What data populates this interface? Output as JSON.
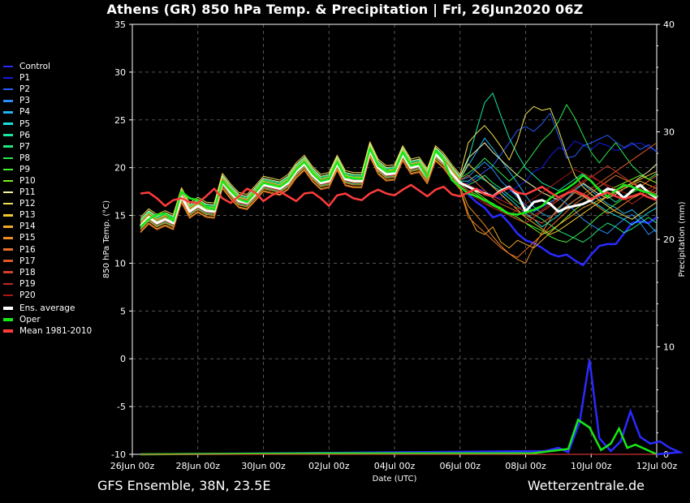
{
  "title": "Athens  (GR)  850 hPa Temp. & Precipitation | Fri, 26Jun2020 06Z",
  "footer": {
    "left": "GFS Ensemble, 38N, 23.5E",
    "right": "Wetterzentrale.de"
  },
  "legend": [
    {
      "label": "Control",
      "color": "#2a2aff"
    },
    {
      "label": "P1",
      "color": "#1818e8"
    },
    {
      "label": "P2",
      "color": "#2a5cff"
    },
    {
      "label": "P3",
      "color": "#2c8cff"
    },
    {
      "label": "P4",
      "color": "#20b4f0"
    },
    {
      "label": "P5",
      "color": "#1ce0e0"
    },
    {
      "label": "P6",
      "color": "#19e6a0"
    },
    {
      "label": "P7",
      "color": "#22e678"
    },
    {
      "label": "P8",
      "color": "#2de650"
    },
    {
      "label": "P9",
      "color": "#44f030"
    },
    {
      "label": "P10",
      "color": "#7cf020"
    },
    {
      "label": "P11",
      "color": "#f2f2a0"
    },
    {
      "label": "P12",
      "color": "#f0e050"
    },
    {
      "label": "P13",
      "color": "#f0c830"
    },
    {
      "label": "P14",
      "color": "#f0a828"
    },
    {
      "label": "P15",
      "color": "#f08c28"
    },
    {
      "label": "P16",
      "color": "#e87028"
    },
    {
      "label": "P17",
      "color": "#e05828"
    },
    {
      "label": "P18",
      "color": "#d04028"
    },
    {
      "label": "P19",
      "color": "#c02828"
    },
    {
      "label": "P20",
      "color": "#a81818"
    },
    {
      "label": "Ens. average",
      "color": "#ffffff"
    },
    {
      "label": "Oper",
      "color": "#18e818"
    },
    {
      "label": "Mean 1981-2010",
      "color": "#ff3c3c"
    }
  ],
  "chart_data": {
    "type": "line",
    "xlabel": "Date (UTC)",
    "ylabel": "850 hPa Temp. (°C)",
    "y2label": "Precipitation (mm)",
    "ylim": [
      -10,
      35
    ],
    "y2lim": [
      0,
      40
    ],
    "yticks": [
      -10,
      -5,
      0,
      5,
      10,
      15,
      20,
      25,
      30,
      35
    ],
    "y2ticks": [
      0,
      10,
      20,
      30,
      40
    ],
    "xlim": [
      0,
      16
    ],
    "xtick_positions": [
      0,
      2,
      4,
      6,
      8,
      10,
      12,
      14,
      16
    ],
    "xtick_labels": [
      "26Jun 00z",
      "28Jun 00z",
      "30Jun 00z",
      "02Jul 00z",
      "04Jul 00z",
      "06Jul 00z",
      "08Jul 00z",
      "10Jul 00z",
      "12Jul 00z"
    ],
    "grid": true,
    "x": [
      0.25,
      0.5,
      0.75,
      1.0,
      1.25,
      1.5,
      1.75,
      2.0,
      2.25,
      2.5,
      2.75,
      3.0,
      3.25,
      3.5,
      3.75,
      4.0,
      4.25,
      4.5,
      4.75,
      5.0,
      5.25,
      5.5,
      5.75,
      6.0,
      6.25,
      6.5,
      6.75,
      7.0,
      7.25,
      7.5,
      7.75,
      8.0,
      8.25,
      8.5,
      8.75,
      9.0,
      9.25,
      9.5,
      9.75,
      10.0,
      10.25,
      10.5,
      10.75,
      11.0,
      11.25,
      11.5,
      11.75,
      12.0,
      12.25,
      12.5,
      12.75,
      13.0,
      13.25,
      13.5,
      13.75,
      14.0,
      14.25,
      14.5,
      14.75,
      15.0,
      15.25,
      15.5,
      15.75,
      16.0
    ],
    "series": [
      {
        "name": "Control",
        "color": "#2a2aff",
        "width": 2.5,
        "offset": 0,
        "tail": [
          17.2,
          16.4,
          15.8,
          14.8,
          15.1,
          14.2,
          13.1,
          12.4,
          12.1,
          11.6,
          11.0,
          10.7,
          10.9,
          10.3,
          9.8,
          10.9,
          11.8,
          12.0,
          12.0,
          13.1,
          14.2,
          14.4,
          14.2,
          14.8,
          15.2,
          15.7,
          15.4
        ],
        "precip": [
          [
            12.6,
            0.3
          ],
          [
            13.0,
            0.6
          ],
          [
            13.3,
            0.2
          ],
          [
            13.65,
            3.0
          ],
          [
            13.95,
            8.8
          ],
          [
            14.25,
            1.5
          ],
          [
            14.6,
            0.3
          ],
          [
            14.9,
            1.2
          ],
          [
            15.2,
            4.0
          ],
          [
            15.5,
            1.6
          ],
          [
            15.8,
            1.0
          ],
          [
            16.1,
            1.2
          ],
          [
            16.4,
            0.6
          ],
          [
            16.7,
            0.2
          ]
        ]
      },
      {
        "name": "P1",
        "color": "#1818e8",
        "offset": 0.1,
        "tail": [
          18.1,
          17.8,
          17.6,
          17.0,
          16.8,
          17.5,
          18.0,
          18.6,
          19.6,
          20.0,
          21.2,
          22.1,
          21.8,
          22.8,
          22.4,
          21.9,
          22.6,
          22.3,
          21.8,
          22.0,
          22.4,
          22.6,
          22.1,
          21.8,
          22.2,
          22.4,
          22.0
        ]
      },
      {
        "name": "P2",
        "color": "#2a5cff",
        "offset": -0.2,
        "tail": [
          18.4,
          18.9,
          19.6,
          20.2,
          21.4,
          22.6,
          23.9,
          24.3,
          23.8,
          24.6,
          25.7,
          23.4,
          21.0,
          21.2,
          22.3,
          22.6,
          23.0,
          23.4,
          22.7,
          22.1,
          22.6,
          21.9,
          22.4,
          21.6,
          22.2,
          21.8,
          22.0
        ]
      },
      {
        "name": "P3",
        "color": "#2c8cff",
        "offset": 0.3,
        "tail": [
          19.0,
          19.9,
          20.6,
          19.8,
          18.6,
          17.8,
          16.9,
          16.1,
          15.4,
          15.9,
          16.4,
          16.9,
          16.2,
          15.5,
          14.6,
          14.0,
          13.5,
          13.1,
          13.9,
          14.6,
          15.1,
          14.2,
          13.0,
          13.6,
          14.4,
          15.0,
          14.6
        ]
      },
      {
        "name": "P4",
        "color": "#20b4f0",
        "offset": 0.4,
        "tail": [
          20.2,
          21.6,
          23.1,
          22.0,
          20.8,
          19.6,
          18.4,
          17.1,
          15.9,
          15.2,
          14.8,
          15.6,
          16.7,
          17.6,
          18.3,
          17.6,
          16.9,
          16.2,
          15.8,
          15.2,
          15.6,
          14.8,
          14.1,
          13.2,
          14.0,
          14.6,
          14.2
        ]
      },
      {
        "name": "P5",
        "color": "#1ce0e0",
        "offset": 0.2,
        "tail": [
          18.6,
          19.2,
          18.7,
          18.1,
          17.5,
          16.8,
          16.0,
          15.2,
          14.6,
          13.8,
          14.4,
          15.0,
          15.9,
          16.6,
          17.1,
          16.5,
          16.0,
          15.4,
          15.0,
          14.6,
          14.0,
          14.7,
          15.3,
          15.8,
          16.4,
          15.6,
          15.0
        ]
      },
      {
        "name": "P6",
        "color": "#19e6a0",
        "offset": 0.6,
        "tail": [
          20.8,
          23.9,
          26.8,
          27.8,
          25.4,
          23.1,
          21.4,
          20.0,
          19.2,
          18.4,
          18.0,
          17.6,
          18.2,
          18.8,
          19.4,
          18.6,
          17.8,
          17.0,
          16.4,
          17.0,
          17.6,
          18.0,
          17.4,
          16.9,
          17.3,
          17.6,
          17.2
        ]
      },
      {
        "name": "P7",
        "color": "#22e678",
        "offset": -0.3,
        "tail": [
          18.2,
          18.6,
          19.2,
          18.4,
          17.8,
          17.1,
          16.4,
          15.8,
          15.1,
          14.6,
          14.0,
          13.4,
          13.0,
          12.6,
          12.2,
          12.8,
          13.6,
          14.2,
          13.8,
          13.2,
          13.6,
          14.2,
          14.8,
          14.2,
          13.6,
          14.0,
          13.6
        ]
      },
      {
        "name": "P8",
        "color": "#2de650",
        "offset": 0.5,
        "tail": [
          19.4,
          20.1,
          21.0,
          20.2,
          19.4,
          18.6,
          19.3,
          20.4,
          21.6,
          22.8,
          23.6,
          24.8,
          26.6,
          25.2,
          23.4,
          21.6,
          20.5,
          21.6,
          22.6,
          21.4,
          20.2,
          19.4,
          18.8,
          19.4,
          20.0,
          19.2,
          18.6
        ]
      },
      {
        "name": "P9",
        "color": "#44f030",
        "offset": -0.1,
        "tail": [
          17.6,
          17.2,
          16.6,
          16.0,
          15.6,
          15.0,
          14.6,
          14.2,
          13.8,
          13.4,
          12.8,
          12.4,
          12.2,
          12.8,
          13.4,
          14.2,
          15.0,
          15.6,
          16.2,
          16.8,
          17.4,
          17.8,
          17.2,
          16.8,
          17.2,
          17.6,
          17.0
        ]
      },
      {
        "name": "P10",
        "color": "#7cf020",
        "offset": 0.2,
        "tail": [
          18.0,
          17.4,
          16.8,
          16.2,
          15.8,
          15.2,
          14.8,
          14.2,
          13.6,
          13.0,
          13.4,
          14.0,
          14.8,
          15.6,
          16.2,
          16.8,
          17.2,
          17.6,
          18.0,
          18.4,
          18.8,
          19.2,
          18.8,
          18.4,
          18.8,
          19.0,
          18.6
        ]
      },
      {
        "name": "P11",
        "color": "#f2f2a0",
        "offset": 0.7,
        "tail": [
          21.0,
          21.8,
          22.6,
          21.6,
          20.8,
          20.0,
          19.2,
          18.6,
          18.0,
          17.4,
          17.0,
          16.6,
          17.2,
          17.8,
          18.4,
          17.8,
          17.2,
          16.8,
          17.2,
          17.8,
          18.4,
          19.0,
          19.6,
          20.4,
          21.2,
          21.8,
          21.4
        ]
      },
      {
        "name": "P12",
        "color": "#f0e050",
        "offset": 0.9,
        "tail": [
          22.6,
          23.6,
          24.4,
          23.4,
          22.2,
          20.8,
          22.8,
          25.6,
          26.4,
          26.0,
          26.2,
          24.0,
          21.4,
          19.2,
          18.0,
          17.2,
          16.6,
          16.0,
          15.4,
          15.0,
          14.6,
          15.2,
          15.8,
          16.4,
          17.0,
          17.4,
          17.0
        ]
      },
      {
        "name": "P13",
        "color": "#f0c830",
        "offset": 0.4,
        "tail": [
          20.4,
          19.6,
          18.8,
          18.0,
          17.2,
          16.4,
          15.6,
          14.8,
          14.2,
          13.6,
          13.0,
          13.4,
          14.0,
          14.6,
          15.2,
          15.8,
          16.4,
          17.0,
          17.6,
          18.0,
          18.4,
          18.8,
          19.2,
          19.6,
          19.2,
          18.8,
          18.4
        ]
      },
      {
        "name": "P14",
        "color": "#f0a828",
        "offset": -0.6,
        "tail": [
          15.2,
          13.4,
          13.0,
          13.8,
          12.2,
          11.6,
          12.4,
          12.0,
          11.6,
          12.4,
          13.2,
          14.0,
          14.6,
          15.2,
          15.8,
          16.2,
          16.6,
          17.0,
          17.4,
          17.8,
          18.2,
          18.6,
          18.2,
          17.8,
          18.2,
          18.6,
          18.2
        ]
      },
      {
        "name": "P15",
        "color": "#f08c28",
        "offset": -0.4,
        "tail": [
          16.0,
          15.0,
          14.0,
          12.8,
          11.8,
          11.0,
          10.4,
          10.0,
          11.8,
          13.2,
          14.6,
          15.8,
          16.6,
          17.4,
          17.0,
          16.4,
          15.8,
          15.2,
          15.6,
          16.2,
          16.8,
          17.2,
          17.6,
          17.2,
          16.8,
          17.2,
          16.8
        ]
      },
      {
        "name": "P16",
        "color": "#e87028",
        "offset": -0.7,
        "tail": [
          14.8,
          14.0,
          13.2,
          12.4,
          11.6,
          11.0,
          10.6,
          11.4,
          12.2,
          13.0,
          13.8,
          14.6,
          15.4,
          16.2,
          16.8,
          17.4,
          18.0,
          18.6,
          19.2,
          18.8,
          18.4,
          18.0,
          18.6,
          19.2,
          19.8,
          19.4,
          19.0
        ]
      },
      {
        "name": "P17",
        "color": "#e05828",
        "offset": 0.3,
        "tail": [
          19.2,
          18.4,
          17.6,
          16.8,
          16.2,
          15.8,
          15.4,
          15.0,
          14.6,
          14.2,
          14.8,
          15.4,
          16.0,
          16.6,
          17.2,
          17.8,
          18.4,
          19.0,
          19.6,
          20.2,
          20.8,
          21.4,
          22.0,
          22.6,
          23.2,
          22.8,
          22.4
        ]
      },
      {
        "name": "P18",
        "color": "#d04028",
        "offset": -0.2,
        "tail": [
          17.6,
          17.0,
          16.4,
          15.8,
          15.4,
          15.0,
          14.6,
          14.2,
          14.8,
          15.4,
          16.0,
          16.6,
          17.2,
          17.8,
          18.4,
          19.0,
          19.6,
          20.2,
          19.6,
          19.0,
          18.4,
          17.8,
          17.2,
          17.6,
          18.0,
          17.6,
          17.2
        ]
      },
      {
        "name": "P19",
        "color": "#c02828",
        "offset": 0.1,
        "tail": [
          18.2,
          17.8,
          17.4,
          17.0,
          16.6,
          16.2,
          15.8,
          15.4,
          15.0,
          15.6,
          16.2,
          16.8,
          17.4,
          18.0,
          18.6,
          19.2,
          18.6,
          18.0,
          17.4,
          16.8,
          16.2,
          16.8,
          17.4,
          18.0,
          18.6,
          18.2,
          17.8
        ]
      },
      {
        "name": "P20",
        "color": "#a81818",
        "offset": -0.1,
        "tail": [
          17.4,
          16.8,
          16.2,
          15.8,
          15.4,
          15.0,
          15.6,
          16.2,
          16.8,
          17.4,
          18.0,
          18.6,
          19.2,
          19.8,
          19.4,
          19.0,
          18.6,
          18.2,
          17.8,
          17.4,
          17.0,
          17.4,
          17.8,
          18.2,
          18.6,
          18.2,
          17.8
        ]
      },
      {
        "name": "Ens. average",
        "color": "#ffffff",
        "width": 3,
        "offset": 0,
        "tail": [
          18.0,
          17.6,
          17.3,
          17.0,
          17.6,
          18.0,
          17.2,
          15.4,
          16.4,
          16.6,
          16.2,
          15.4,
          15.8,
          16.0,
          16.2,
          16.6,
          17.2,
          17.8,
          17.6,
          16.8,
          17.6,
          18.2,
          17.4,
          16.8,
          17.4,
          18.2,
          17.2
        ]
      },
      {
        "name": "Oper",
        "color": "#18e818",
        "width": 2.5,
        "offset": 0,
        "raw": true,
        "values": [
          13.8,
          14.6,
          15.1,
          15.2,
          14.4,
          17.5,
          16.8,
          16.6,
          15.9,
          15.6,
          18.6,
          17.6,
          16.7,
          16.4,
          17.4,
          18.4,
          18.2,
          18.0,
          18.6,
          19.8,
          20.6,
          19.4,
          18.6,
          18.8,
          20.6,
          19.0,
          18.9,
          18.8,
          22.0,
          20.2,
          19.6,
          19.6,
          21.6,
          20.2,
          20.4,
          19.0,
          21.8,
          20.8,
          18.7,
          18.0,
          17.3,
          17.0,
          16.6,
          16.2,
          15.6,
          15.2,
          15.1,
          15.3,
          15.6,
          16.0,
          16.8,
          17.4,
          17.8,
          18.4,
          19.2,
          18.6,
          17.6,
          17.0,
          17.6,
          18.2,
          18.0,
          17.6,
          17.4,
          17.0
        ],
        "precip": [
          [
            6.0,
            0.1
          ],
          [
            12.2,
            0.1
          ],
          [
            13.3,
            0.5
          ],
          [
            13.6,
            3.2
          ],
          [
            13.95,
            2.5
          ],
          [
            14.3,
            0.4
          ],
          [
            14.6,
            1.0
          ],
          [
            14.85,
            2.4
          ],
          [
            15.1,
            0.6
          ],
          [
            15.35,
            0.9
          ]
        ]
      },
      {
        "name": "Mean 1981-2010",
        "color": "#ff3c3c",
        "width": 2.5,
        "offset": 0,
        "raw": true,
        "values": [
          17.3,
          17.4,
          16.8,
          16.0,
          16.6,
          16.8,
          16.4,
          16.3,
          17.0,
          17.8,
          16.8,
          16.3,
          17.0,
          17.8,
          17.4,
          16.5,
          17.1,
          17.5,
          17.0,
          16.5,
          17.3,
          17.4,
          16.8,
          16.0,
          17.1,
          17.3,
          16.8,
          16.6,
          17.3,
          17.7,
          17.3,
          17.1,
          17.7,
          18.2,
          17.6,
          17.0,
          17.7,
          18.0,
          17.2,
          17.0,
          17.4,
          17.8,
          17.2,
          17.0,
          17.5,
          17.9,
          17.4,
          17.2,
          17.6,
          18.0,
          17.4,
          16.9,
          17.3,
          17.6,
          17.2,
          16.7,
          17.1,
          17.4,
          17.0,
          16.7,
          17.0,
          17.3,
          16.9,
          16.6
        ]
      }
    ],
    "base_values": [
      13.9,
      14.8,
      14.2,
      14.6,
      14.2,
      17.0,
      15.4,
      16.0,
      15.5,
      15.4,
      18.5,
      17.4,
      16.5,
      16.3,
      17.2,
      18.2,
      18.0,
      17.8,
      18.4,
      19.6,
      20.4,
      19.2,
      18.4,
      18.6,
      20.4,
      18.8,
      18.6,
      18.6,
      21.8,
      20.0,
      19.3,
      19.4,
      21.4,
      20.0,
      20.2,
      19.0,
      21.4,
      20.6,
      19.4,
      18.4
    ]
  }
}
